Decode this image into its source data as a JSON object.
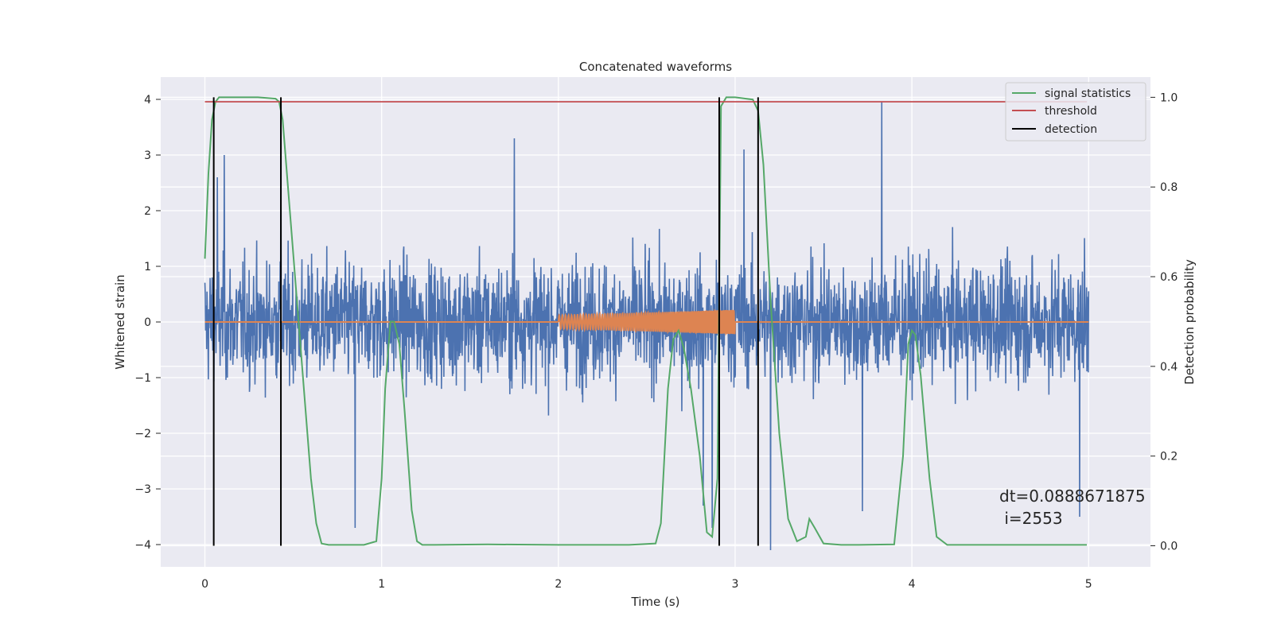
{
  "chart_data": {
    "type": "line",
    "title": "Concatenated waveforms",
    "xlabel": "Time (s)",
    "ylabel": "Whitened strain",
    "ylabel_right": "Detection probability",
    "xlim": [
      -0.25,
      5.35
    ],
    "ylim": [
      -4.4,
      4.4
    ],
    "ylim_right": [
      -0.047,
      1.045
    ],
    "xticks": [
      0,
      1,
      2,
      3,
      4,
      5
    ],
    "yticks": [
      -4,
      -3,
      -2,
      -1,
      0,
      1,
      2,
      3,
      4
    ],
    "yticks_right": [
      0.0,
      0.2,
      0.4,
      0.6,
      0.8,
      1.0
    ],
    "xtick_labels": [
      "0",
      "1",
      "2",
      "3",
      "4",
      "5"
    ],
    "ytick_labels": [
      "−4",
      "−3",
      "−2",
      "−1",
      "0",
      "1",
      "2",
      "3",
      "4"
    ],
    "ytick_labels_right": [
      "0.0",
      "0.2",
      "0.4",
      "0.6",
      "0.8",
      "1.0"
    ],
    "grid": true,
    "legend_position": "top-right",
    "legend": [
      "signal statistics",
      "threshold",
      "detection"
    ],
    "colors": {
      "strain": "#4c72b0",
      "waveform": "#dd8452",
      "signal_statistics": "#55a868",
      "threshold": "#c44e52",
      "detection": "#000000",
      "background": "#eaeaf2",
      "grid": "#ffffff"
    },
    "strain": {
      "x_range": [
        0,
        5
      ],
      "samples": 2560,
      "typical_abs_max": 2.5,
      "notable_peaks": [
        {
          "x": 0.07,
          "y": 2.6
        },
        {
          "x": 0.11,
          "y": 3.0
        },
        {
          "x": 0.43,
          "y": 3.9
        },
        {
          "x": 1.75,
          "y": 3.3
        },
        {
          "x": 3.05,
          "y": 3.1
        },
        {
          "x": 3.83,
          "y": 3.95
        }
      ],
      "notable_troughs": [
        {
          "x": 0.85,
          "y": -3.7
        },
        {
          "x": 2.82,
          "y": -3.3
        },
        {
          "x": 2.87,
          "y": -3.7
        },
        {
          "x": 3.2,
          "y": -4.1
        },
        {
          "x": 3.72,
          "y": -3.4
        },
        {
          "x": 4.95,
          "y": -3.5
        }
      ]
    },
    "waveform": {
      "x_range": [
        2.0,
        3.0
      ],
      "amp_start": 0.12,
      "amp_end": 0.22
    },
    "signal_statistics": {
      "x": [
        0.0,
        0.02,
        0.04,
        0.06,
        0.08,
        0.1,
        0.2,
        0.3,
        0.4,
        0.42,
        0.44,
        0.46,
        0.5,
        0.55,
        0.6,
        0.63,
        0.66,
        0.7,
        0.8,
        0.9,
        0.97,
        1.0,
        1.02,
        1.05,
        1.07,
        1.1,
        1.13,
        1.17,
        1.2,
        1.23,
        1.3,
        1.6,
        2.0,
        2.4,
        2.55,
        2.58,
        2.6,
        2.62,
        2.65,
        2.68,
        2.71,
        2.75,
        2.8,
        2.84,
        2.87,
        2.9,
        2.92,
        2.95,
        3.0,
        3.1,
        3.13,
        3.16,
        3.2,
        3.25,
        3.3,
        3.35,
        3.4,
        3.42,
        3.45,
        3.5,
        3.6,
        3.7,
        3.9,
        3.95,
        3.98,
        4.0,
        4.02,
        4.05,
        4.1,
        4.14,
        4.2,
        4.4,
        4.7,
        4.99
      ],
      "y": [
        0.64,
        0.83,
        0.95,
        0.99,
        1.0,
        1.0,
        1.0,
        1.0,
        0.997,
        0.99,
        0.95,
        0.85,
        0.65,
        0.4,
        0.15,
        0.05,
        0.005,
        0.002,
        0.002,
        0.002,
        0.01,
        0.15,
        0.35,
        0.5,
        0.5,
        0.45,
        0.3,
        0.08,
        0.01,
        0.002,
        0.002,
        0.003,
        0.002,
        0.002,
        0.005,
        0.05,
        0.2,
        0.35,
        0.46,
        0.48,
        0.44,
        0.35,
        0.2,
        0.03,
        0.02,
        0.15,
        0.98,
        1.0,
        1.0,
        0.995,
        0.97,
        0.85,
        0.55,
        0.25,
        0.06,
        0.01,
        0.02,
        0.06,
        0.04,
        0.005,
        0.002,
        0.002,
        0.003,
        0.2,
        0.45,
        0.48,
        0.47,
        0.38,
        0.15,
        0.02,
        0.002,
        0.002,
        0.002,
        0.002
      ]
    },
    "threshold": {
      "x": [
        0,
        4.99
      ],
      "y": [
        0.99,
        0.99
      ]
    },
    "detections": [
      0.05,
      0.43,
      2.91,
      3.13
    ],
    "annotation": {
      "lines": [
        "dt=0.0888671875",
        " i=2553"
      ]
    }
  }
}
